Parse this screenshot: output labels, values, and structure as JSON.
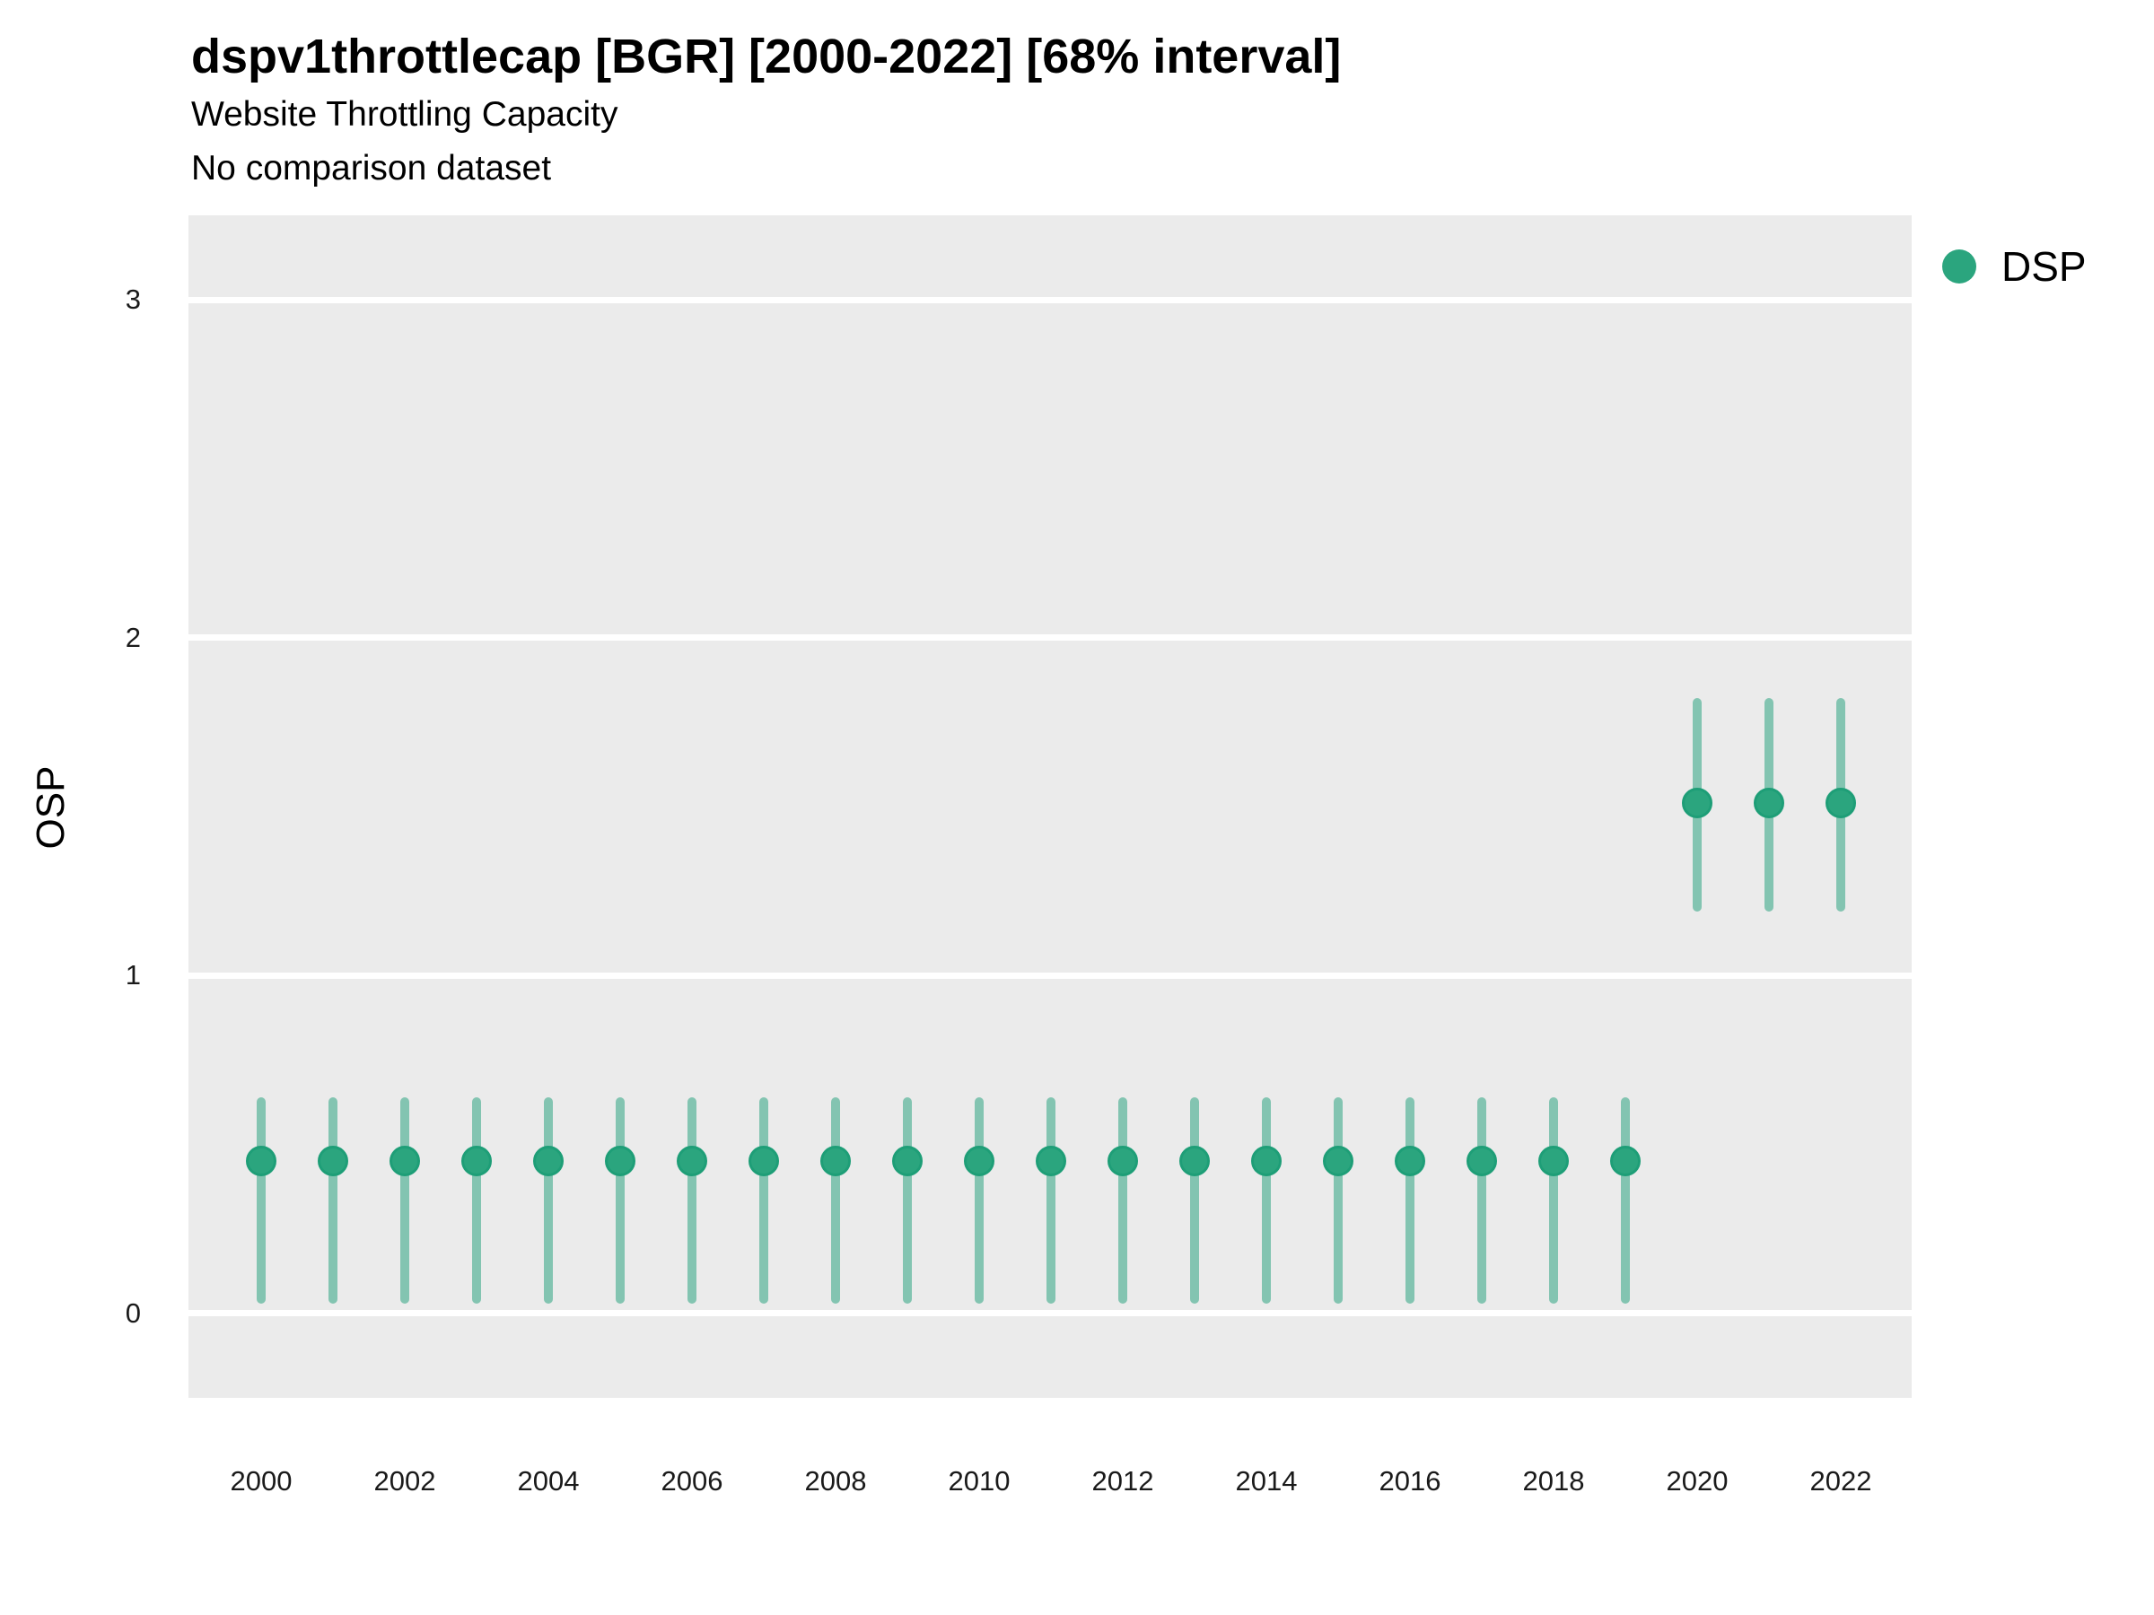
{
  "header": {
    "title": "dspv1throttlecap [BGR] [2000-2022] [68% interval]",
    "subtitle": "Website Throttling Capacity",
    "note": "No comparison dataset"
  },
  "legend": {
    "position": "top-right",
    "items": [
      {
        "label": "DSP",
        "color": "#2BA57E"
      }
    ]
  },
  "chart_data": {
    "type": "scatter",
    "subtype": "pointrange",
    "title": "dspv1throttlecap [BGR] [2000-2022] [68% interval]",
    "subtitle": "Website Throttling Capacity",
    "note": "No comparison dataset",
    "interval": "68%",
    "xlabel": "",
    "ylabel": "OSP",
    "ylim": [
      -0.25,
      3.25
    ],
    "y_ticks": [
      0,
      1,
      2,
      3
    ],
    "x_ticks": [
      2000,
      2002,
      2004,
      2006,
      2008,
      2010,
      2012,
      2014,
      2016,
      2018,
      2020,
      2022
    ],
    "grid": "horizontal major only, white lines on gray panel",
    "legend_position": "top-right",
    "series": [
      {
        "name": "DSP",
        "x": [
          2000,
          2001,
          2002,
          2003,
          2004,
          2005,
          2006,
          2007,
          2008,
          2009,
          2010,
          2011,
          2012,
          2013,
          2014,
          2015,
          2016,
          2017,
          2018,
          2019,
          2020,
          2021,
          2022
        ],
        "y": [
          0.45,
          0.45,
          0.45,
          0.45,
          0.45,
          0.45,
          0.45,
          0.45,
          0.45,
          0.45,
          0.45,
          0.45,
          0.45,
          0.45,
          0.45,
          0.45,
          0.45,
          0.45,
          0.45,
          0.45,
          1.51,
          1.51,
          1.51
        ],
        "y_lo": [
          0.03,
          0.03,
          0.03,
          0.03,
          0.03,
          0.03,
          0.03,
          0.03,
          0.03,
          0.03,
          0.03,
          0.03,
          0.03,
          0.03,
          0.03,
          0.03,
          0.03,
          0.03,
          0.03,
          0.03,
          1.19,
          1.19,
          1.19
        ],
        "y_hi": [
          0.64,
          0.64,
          0.64,
          0.64,
          0.64,
          0.64,
          0.64,
          0.64,
          0.64,
          0.64,
          0.64,
          0.64,
          0.64,
          0.64,
          0.64,
          0.64,
          0.64,
          0.64,
          0.64,
          0.64,
          1.82,
          1.82,
          1.82
        ]
      }
    ],
    "colors": {
      "point_fill": "#2BA57E",
      "point_border": "#1E9E77",
      "interval_bar": "rgba(27, 158, 119, 0.5)",
      "panel_bg": "#EBEBEB",
      "gridline": "#FFFFFF",
      "text": "#000000",
      "tick_text": "#1a1a1a"
    }
  }
}
